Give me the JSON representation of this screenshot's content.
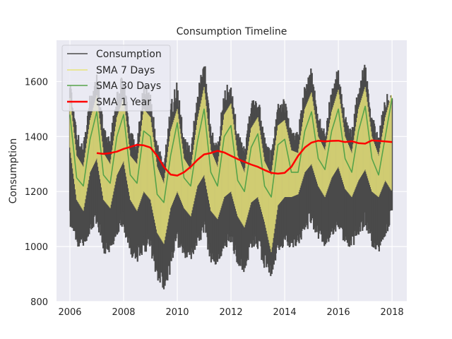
{
  "chart_data": {
    "type": "line",
    "title": "Consumption Timeline",
    "xlabel": "",
    "ylabel": "Consumption",
    "xlim": [
      2005.5,
      2018.55
    ],
    "ylim": [
      800,
      1750
    ],
    "x_ticks": [
      2006,
      2008,
      2010,
      2012,
      2014,
      2016,
      2018
    ],
    "y_ticks": [
      800,
      1000,
      1200,
      1400,
      1600
    ],
    "grid": true,
    "legend_position": "top-left",
    "background": "#eaeaf2",
    "series": [
      {
        "name": "Consumption",
        "color": "#4a4a4a",
        "note_envelope": true,
        "x": [
          2006.0,
          2006.25,
          2006.5,
          2006.75,
          2007.0,
          2007.25,
          2007.5,
          2007.75,
          2008.0,
          2008.25,
          2008.5,
          2008.75,
          2009.0,
          2009.25,
          2009.5,
          2009.75,
          2010.0,
          2010.25,
          2010.5,
          2010.75,
          2011.0,
          2011.25,
          2011.5,
          2011.75,
          2012.0,
          2012.25,
          2012.5,
          2012.75,
          2013.0,
          2013.25,
          2013.5,
          2013.75,
          2014.0,
          2014.25,
          2014.5,
          2014.75,
          2015.0,
          2015.25,
          2015.5,
          2015.75,
          2016.0,
          2016.25,
          2016.5,
          2016.75,
          2017.0,
          2017.25,
          2017.5,
          2017.75,
          2018.0
        ],
        "high": [
          1620,
          1420,
          1380,
          1560,
          1650,
          1440,
          1400,
          1570,
          1640,
          1420,
          1390,
          1600,
          1560,
          1380,
          1320,
          1520,
          1610,
          1400,
          1370,
          1560,
          1710,
          1440,
          1380,
          1580,
          1600,
          1420,
          1360,
          1530,
          1560,
          1400,
          1350,
          1540,
          1540,
          1430,
          1420,
          1600,
          1660,
          1480,
          1430,
          1580,
          1660,
          1480,
          1420,
          1600,
          1680,
          1480,
          1410,
          1560,
          1570
        ],
        "low": [
          1070,
          1000,
          990,
          1050,
          1080,
          970,
          970,
          1040,
          1060,
          960,
          940,
          980,
          980,
          880,
          840,
          900,
          1000,
          960,
          950,
          1000,
          1030,
          940,
          920,
          980,
          1010,
          930,
          900,
          980,
          990,
          920,
          880,
          960,
          1010,
          990,
          1000,
          1050,
          1080,
          1020,
          1000,
          1030,
          1060,
          1000,
          990,
          1030,
          1070,
          1000,
          980,
          1000,
          1130
        ]
      },
      {
        "name": "SMA 7 Days",
        "color": "#e8e37a",
        "x": [
          2006.0,
          2006.25,
          2006.5,
          2006.75,
          2007.0,
          2007.25,
          2007.5,
          2007.75,
          2008.0,
          2008.25,
          2008.5,
          2008.75,
          2009.0,
          2009.25,
          2009.5,
          2009.75,
          2010.0,
          2010.25,
          2010.5,
          2010.75,
          2011.0,
          2011.25,
          2011.5,
          2011.75,
          2012.0,
          2012.25,
          2012.5,
          2012.75,
          2013.0,
          2013.25,
          2013.5,
          2013.75,
          2014.0,
          2014.25,
          2014.5,
          2014.75,
          2015.0,
          2015.25,
          2015.5,
          2015.75,
          2016.0,
          2016.25,
          2016.5,
          2016.75,
          2017.0,
          2017.25,
          2017.5,
          2017.75,
          2018.0
        ],
        "high": [
          1540,
          1330,
          1290,
          1460,
          1550,
          1340,
          1300,
          1470,
          1540,
          1330,
          1300,
          1500,
          1470,
          1290,
          1230,
          1420,
          1500,
          1320,
          1280,
          1460,
          1580,
          1350,
          1290,
          1480,
          1520,
          1330,
          1270,
          1430,
          1470,
          1310,
          1260,
          1440,
          1460,
          1350,
          1340,
          1500,
          1560,
          1400,
          1350,
          1490,
          1570,
          1400,
          1340,
          1500,
          1580,
          1400,
          1330,
          1470,
          1560
        ],
        "low": [
          1360,
          1170,
          1130,
          1270,
          1320,
          1170,
          1140,
          1260,
          1310,
          1170,
          1130,
          1200,
          1170,
          1050,
          1010,
          1140,
          1200,
          1140,
          1110,
          1220,
          1260,
          1130,
          1100,
          1180,
          1200,
          1110,
          1070,
          1160,
          1180,
          1090,
          980,
          1150,
          1180,
          1180,
          1190,
          1270,
          1300,
          1220,
          1180,
          1250,
          1290,
          1210,
          1180,
          1240,
          1280,
          1200,
          1180,
          1240,
          1200
        ]
      },
      {
        "name": "SMA 30 Days",
        "color": "#56a34a",
        "x": [
          2006.0,
          2006.25,
          2006.5,
          2006.75,
          2007.0,
          2007.25,
          2007.5,
          2007.75,
          2008.0,
          2008.25,
          2008.5,
          2008.75,
          2009.0,
          2009.25,
          2009.5,
          2009.75,
          2010.0,
          2010.25,
          2010.5,
          2010.75,
          2011.0,
          2011.25,
          2011.5,
          2011.75,
          2012.0,
          2012.25,
          2012.5,
          2012.75,
          2013.0,
          2013.25,
          2013.5,
          2013.75,
          2014.0,
          2014.25,
          2014.5,
          2014.75,
          2015.0,
          2015.25,
          2015.5,
          2015.75,
          2016.0,
          2016.25,
          2016.5,
          2016.75,
          2017.0,
          2017.25,
          2017.5,
          2017.75,
          2018.0
        ],
        "values": [
          1480,
          1250,
          1220,
          1390,
          1490,
          1260,
          1230,
          1400,
          1480,
          1260,
          1230,
          1420,
          1400,
          1190,
          1160,
          1330,
          1450,
          1250,
          1220,
          1380,
          1500,
          1270,
          1220,
          1400,
          1440,
          1240,
          1200,
          1360,
          1410,
          1220,
          1180,
          1370,
          1390,
          1270,
          1270,
          1420,
          1490,
          1320,
          1280,
          1420,
          1500,
          1320,
          1270,
          1420,
          1510,
          1320,
          1260,
          1400,
          1540
        ]
      },
      {
        "name": "SMA 1 Year",
        "color": "#ff0000",
        "x": [
          2007.0,
          2007.25,
          2007.5,
          2007.75,
          2008.0,
          2008.25,
          2008.5,
          2008.75,
          2009.0,
          2009.25,
          2009.5,
          2009.75,
          2010.0,
          2010.25,
          2010.5,
          2010.75,
          2011.0,
          2011.25,
          2011.5,
          2011.75,
          2012.0,
          2012.25,
          2012.5,
          2012.75,
          2013.0,
          2013.25,
          2013.5,
          2013.75,
          2014.0,
          2014.25,
          2014.5,
          2014.75,
          2015.0,
          2015.25,
          2015.5,
          2015.75,
          2016.0,
          2016.25,
          2016.5,
          2016.75,
          2017.0,
          2017.25,
          2017.5,
          2017.75,
          2018.0
        ],
        "values": [
          1340,
          1337,
          1340,
          1345,
          1355,
          1362,
          1370,
          1368,
          1360,
          1330,
          1290,
          1262,
          1258,
          1270,
          1290,
          1315,
          1335,
          1340,
          1348,
          1342,
          1330,
          1318,
          1308,
          1298,
          1290,
          1278,
          1268,
          1265,
          1268,
          1290,
          1330,
          1360,
          1378,
          1385,
          1382,
          1384,
          1385,
          1380,
          1383,
          1376,
          1374,
          1386,
          1384,
          1382,
          1380
        ]
      }
    ]
  }
}
